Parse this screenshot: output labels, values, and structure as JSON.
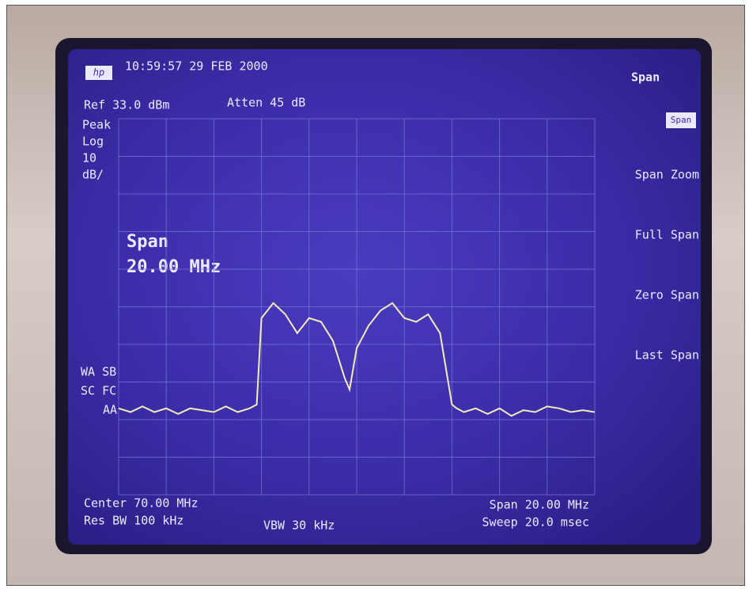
{
  "screen": {
    "timestamp": "10:59:57  29 FEB 2000",
    "menu_title": "Span",
    "ref_level": "Ref 33.0 dBm",
    "attenuation": "Atten 45 dB",
    "scale_lines": [
      "Peak",
      "Log",
      "10",
      "dB/"
    ],
    "active_function": [
      "Span",
      "20.00 MHz"
    ],
    "status_lines": [
      "WA SB",
      "SC FC",
      "AA"
    ],
    "bottom_left": [
      "Center 70.00 MHz",
      "Res BW 100 kHz"
    ],
    "bottom_center": "VBW 30 kHz",
    "bottom_right": [
      "Span 20.00 MHz",
      "Sweep 20.0 msec"
    ],
    "softkeys": [
      "Span",
      "Span Zoom",
      "Full Span",
      "Zero Span",
      "Last Span"
    ]
  },
  "chart_data": {
    "type": "line",
    "x": [
      60,
      60.5,
      61,
      61.5,
      62,
      62.5,
      63,
      63.5,
      64,
      64.5,
      65,
      65.5,
      65.8,
      66,
      66.5,
      67,
      67.5,
      68,
      68.5,
      69,
      69.5,
      69.7,
      70,
      70.5,
      71,
      71.5,
      72,
      72.5,
      73,
      73.5,
      74,
      74.2,
      74.5,
      75,
      75.5,
      76,
      76.5,
      77,
      77.5,
      78,
      78.5,
      79,
      79.5,
      80
    ],
    "values": [
      -44,
      -45,
      -43.5,
      -45,
      -44,
      -45.5,
      -44,
      -44.5,
      -45,
      -43.5,
      -45,
      -44,
      -43,
      -20,
      -16,
      -19,
      -24,
      -20,
      -21,
      -26,
      -36,
      -39,
      -28,
      -22,
      -18,
      -16,
      -20,
      -21,
      -19,
      -24,
      -43,
      -44,
      -45,
      -44,
      -45.5,
      -44,
      -46,
      -44.5,
      -45,
      -43.5,
      -44,
      -45,
      -44.5,
      -45
    ],
    "color": "#f2ecb8",
    "xlim": [
      60,
      80
    ],
    "ylim": [
      -67,
      33
    ]
  }
}
